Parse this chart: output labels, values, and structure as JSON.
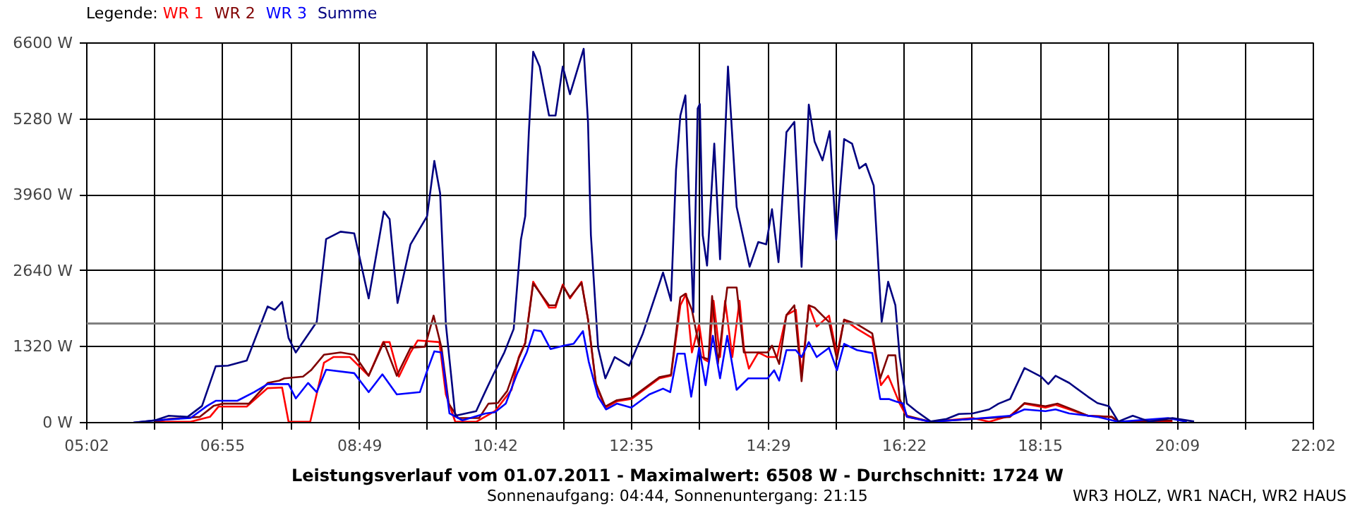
{
  "chart_data": {
    "type": "line",
    "title": "Leistungsverlauf vom 01.07.2011 - Maximalwert: 6508 W - Durchschnitt: 1724 W",
    "subtitle": "Sonnenaufgang: 04:44, Sonnenuntergang: 21:15",
    "annotations": [
      "WR3 HOLZ, WR1 NACH, WR2 HAUS"
    ],
    "legend_title": "Legende:",
    "grid": true,
    "line_style": "solid",
    "xlim": [
      5.0333,
      22.0333
    ],
    "ylim": [
      0,
      6600
    ],
    "xticks": [
      {
        "value": 5.0333,
        "label": "05:02"
      },
      {
        "value": 5.9778,
        "label": null
      },
      {
        "value": 6.9167,
        "label": "06:55"
      },
      {
        "value": 7.8611,
        "label": null
      },
      {
        "value": 8.8167,
        "label": "08:49"
      },
      {
        "value": 9.75,
        "label": null
      },
      {
        "value": 10.7,
        "label": "10:42"
      },
      {
        "value": 11.6389,
        "label": null
      },
      {
        "value": 12.5833,
        "label": "12:35"
      },
      {
        "value": 13.5278,
        "label": null
      },
      {
        "value": 14.4833,
        "label": "14:29"
      },
      {
        "value": 15.4167,
        "label": null
      },
      {
        "value": 16.3667,
        "label": "16:22"
      },
      {
        "value": 17.3056,
        "label": null
      },
      {
        "value": 18.25,
        "label": "18:15"
      },
      {
        "value": 19.1944,
        "label": null
      },
      {
        "value": 20.15,
        "label": "20:09"
      },
      {
        "value": 21.0889,
        "label": null
      },
      {
        "value": 22.0333,
        "label": "22:02"
      }
    ],
    "yticks": [
      {
        "value": 0,
        "label": "0 W"
      },
      {
        "value": 1320,
        "label": "1320 W"
      },
      {
        "value": 2640,
        "label": "2640 W"
      },
      {
        "value": 3960,
        "label": "3960 W"
      },
      {
        "value": 5280,
        "label": "5280 W"
      },
      {
        "value": 6600,
        "label": "6600 W"
      }
    ],
    "ref_lines": [
      {
        "axis": "y",
        "value": 1724,
        "color": "#808080"
      }
    ],
    "series": [
      {
        "name": "WR 1",
        "color": "#ff0000",
        "x": [
          5.98,
          6.47,
          6.74,
          6.86,
          7.25,
          7.54,
          7.74,
          7.83,
          8.13,
          8.32,
          8.45,
          8.68,
          8.94,
          9.14,
          9.23,
          9.36,
          9.52,
          9.62,
          9.92,
          10.01,
          10.14,
          10.43,
          10.69,
          10.82,
          10.92,
          11.02,
          11.11,
          11.22,
          11.44,
          11.53,
          11.63,
          11.73,
          11.89,
          11.98,
          12.09,
          12.22,
          12.38,
          12.58,
          12.97,
          13.13,
          13.26,
          13.34,
          13.42,
          13.52,
          13.59,
          13.65,
          13.72,
          13.81,
          13.88,
          13.98,
          14.08,
          14.14,
          14.21,
          14.34,
          14.47,
          14.6,
          14.73,
          14.86,
          14.94,
          15.04,
          15.15,
          15.32,
          15.43,
          15.53,
          15.71,
          15.92,
          16.04,
          16.14,
          16.3,
          16.4,
          16.73,
          17.31,
          17.54,
          17.83,
          18.03,
          18.32,
          18.46,
          18.91,
          19.24,
          19.33,
          20.08
        ],
        "values": [
          15,
          15,
          100,
          280,
          280,
          600,
          610,
          15,
          15,
          1040,
          1140,
          1140,
          815,
          1400,
          1400,
          800,
          1220,
          1430,
          1400,
          490,
          15,
          15,
          200,
          410,
          570,
          1140,
          1390,
          2450,
          2000,
          2000,
          2400,
          2160,
          2450,
          1790,
          650,
          260,
          370,
          410,
          770,
          815,
          2040,
          2240,
          1220,
          1710,
          1100,
          1060,
          2120,
          1140,
          2120,
          1140,
          2120,
          1300,
          940,
          1220,
          1140,
          1140,
          1870,
          1960,
          815,
          2040,
          1670,
          1860,
          1180,
          1790,
          1630,
          1470,
          650,
          815,
          330,
          100,
          15,
          80,
          15,
          120,
          330,
          260,
          310,
          120,
          100,
          15,
          15
        ]
      },
      {
        "name": "WR 2",
        "color": "#800000",
        "x": [
          5.98,
          6.17,
          6.6,
          6.79,
          6.92,
          7.28,
          7.54,
          7.7,
          7.77,
          8.03,
          8.14,
          8.32,
          8.55,
          8.74,
          8.94,
          9.15,
          9.33,
          9.52,
          9.72,
          9.84,
          9.95,
          10.05,
          10.18,
          10.47,
          10.6,
          10.73,
          10.86,
          11.02,
          11.11,
          11.22,
          11.44,
          11.53,
          11.63,
          11.73,
          11.89,
          11.98,
          12.09,
          12.22,
          12.38,
          12.58,
          12.97,
          13.13,
          13.26,
          13.33,
          13.42,
          13.55,
          13.65,
          13.7,
          13.78,
          13.91,
          14.04,
          14.14,
          14.47,
          14.53,
          14.63,
          14.73,
          14.84,
          14.94,
          15.04,
          15.12,
          15.32,
          15.43,
          15.53,
          15.71,
          15.92,
          16.03,
          16.14,
          16.24,
          16.3,
          16.4,
          16.73,
          17.31,
          17.83,
          18.03,
          18.32,
          18.49,
          18.91,
          19.24,
          19.33,
          20.08
        ],
        "values": [
          15,
          65,
          100,
          290,
          330,
          330,
          690,
          730,
          770,
          800,
          910,
          1180,
          1220,
          1180,
          815,
          1400,
          815,
          1300,
          1320,
          1860,
          1300,
          330,
          80,
          80,
          330,
          340,
          550,
          1120,
          1380,
          2420,
          2040,
          2040,
          2380,
          2180,
          2430,
          1800,
          680,
          280,
          390,
          430,
          790,
          830,
          2180,
          2240,
          1960,
          1140,
          1100,
          2200,
          1020,
          2350,
          2350,
          1220,
          1220,
          1340,
          1020,
          1870,
          2040,
          720,
          2040,
          2000,
          1750,
          1100,
          1790,
          1710,
          1550,
          770,
          1170,
          1170,
          410,
          120,
          15,
          65,
          100,
          340,
          285,
          330,
          120,
          100,
          15,
          40
        ]
      },
      {
        "name": "WR 3",
        "color": "#0000ff",
        "x": [
          5.68,
          5.98,
          6.47,
          6.7,
          6.82,
          7.12,
          7.35,
          7.54,
          7.83,
          7.93,
          8.1,
          8.22,
          8.35,
          8.74,
          8.94,
          9.13,
          9.33,
          9.65,
          9.75,
          9.85,
          9.95,
          10.06,
          10.24,
          10.56,
          10.69,
          10.84,
          11.0,
          11.13,
          11.23,
          11.33,
          11.46,
          11.65,
          11.78,
          11.91,
          11.99,
          12.12,
          12.23,
          12.38,
          12.58,
          12.83,
          13.02,
          13.12,
          13.22,
          13.32,
          13.41,
          13.52,
          13.61,
          13.71,
          13.81,
          13.91,
          14.04,
          14.2,
          14.34,
          14.47,
          14.56,
          14.63,
          14.73,
          14.86,
          14.94,
          15.04,
          15.15,
          15.32,
          15.43,
          15.53,
          15.71,
          15.92,
          16.03,
          16.15,
          16.24,
          16.35,
          16.4,
          16.73,
          17.31,
          17.83,
          18.03,
          18.32,
          18.46,
          18.65,
          19.04,
          19.33,
          20.02,
          20.28
        ],
        "values": [
          0,
          40,
          80,
          290,
          380,
          380,
          530,
          670,
          670,
          420,
          690,
          530,
          920,
          860,
          530,
          840,
          490,
          530,
          900,
          1240,
          1220,
          160,
          40,
          160,
          180,
          330,
          860,
          1220,
          1610,
          1590,
          1280,
          1340,
          1370,
          1590,
          1060,
          450,
          230,
          330,
          260,
          490,
          590,
          530,
          1200,
          1200,
          450,
          1300,
          650,
          1510,
          770,
          1510,
          570,
          770,
          770,
          770,
          910,
          730,
          1260,
          1260,
          1140,
          1400,
          1140,
          1300,
          910,
          1370,
          1260,
          1210,
          410,
          410,
          370,
          330,
          100,
          15,
          65,
          120,
          230,
          200,
          230,
          160,
          100,
          15,
          80,
          15
        ]
      },
      {
        "name": "Summe",
        "color": "#000080",
        "x": [
          5.68,
          5.98,
          6.17,
          6.43,
          6.63,
          6.82,
          6.99,
          7.25,
          7.54,
          7.64,
          7.74,
          7.83,
          7.93,
          8.22,
          8.35,
          8.55,
          8.74,
          8.94,
          9.15,
          9.23,
          9.34,
          9.52,
          9.75,
          9.85,
          9.93,
          10.01,
          10.14,
          10.43,
          10.56,
          10.66,
          10.82,
          10.95,
          11.05,
          11.11,
          11.16,
          11.22,
          11.31,
          11.44,
          11.53,
          11.63,
          11.73,
          11.92,
          11.98,
          12.02,
          12.12,
          12.22,
          12.35,
          12.55,
          12.74,
          13.02,
          13.13,
          13.2,
          13.26,
          13.33,
          13.39,
          13.44,
          13.5,
          13.53,
          13.57,
          13.63,
          13.73,
          13.81,
          13.92,
          14.04,
          14.22,
          14.34,
          14.45,
          14.53,
          14.62,
          14.73,
          14.84,
          14.94,
          15.04,
          15.12,
          15.23,
          15.33,
          15.42,
          15.45,
          15.53,
          15.64,
          15.74,
          15.83,
          15.94,
          16.05,
          16.14,
          16.24,
          16.3,
          16.4,
          16.53,
          16.73,
          16.95,
          17.12,
          17.31,
          17.54,
          17.67,
          17.83,
          18.03,
          18.26,
          18.36,
          18.46,
          18.65,
          18.91,
          19.04,
          19.2,
          19.33,
          19.53,
          19.76,
          20.08,
          20.38
        ],
        "values": [
          0,
          40,
          120,
          100,
          290,
          980,
          990,
          1080,
          2020,
          1960,
          2100,
          1470,
          1220,
          1750,
          3190,
          3320,
          3290,
          2160,
          3670,
          3540,
          2080,
          3100,
          3590,
          4550,
          3990,
          1710,
          120,
          200,
          550,
          815,
          1220,
          1630,
          3180,
          3590,
          5050,
          6450,
          6190,
          5340,
          5340,
          6190,
          5710,
          6500,
          5220,
          3260,
          1300,
          770,
          1140,
          990,
          1550,
          2610,
          2120,
          4400,
          5340,
          5690,
          3590,
          1920,
          5460,
          5540,
          3260,
          2730,
          4850,
          2840,
          6190,
          3750,
          2710,
          3140,
          3100,
          3710,
          2790,
          5050,
          5230,
          2710,
          5530,
          4890,
          4560,
          5070,
          3180,
          3670,
          4930,
          4850,
          4420,
          4500,
          4120,
          1750,
          2450,
          2040,
          1140,
          330,
          200,
          20,
          65,
          150,
          160,
          230,
          330,
          410,
          950,
          800,
          670,
          815,
          690,
          450,
          340,
          285,
          20,
          120,
          20,
          80,
          20
        ]
      }
    ]
  }
}
